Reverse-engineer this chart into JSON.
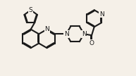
{
  "bg_color": "#f5f0e8",
  "bond_color": "#1a1a1a",
  "atom_bg": "#f5f0e8",
  "bond_width": 1.5,
  "figsize": [
    1.93,
    1.08
  ],
  "dpi": 100,
  "xlim": [
    0,
    10.5
  ],
  "ylim": [
    0,
    5.5
  ]
}
